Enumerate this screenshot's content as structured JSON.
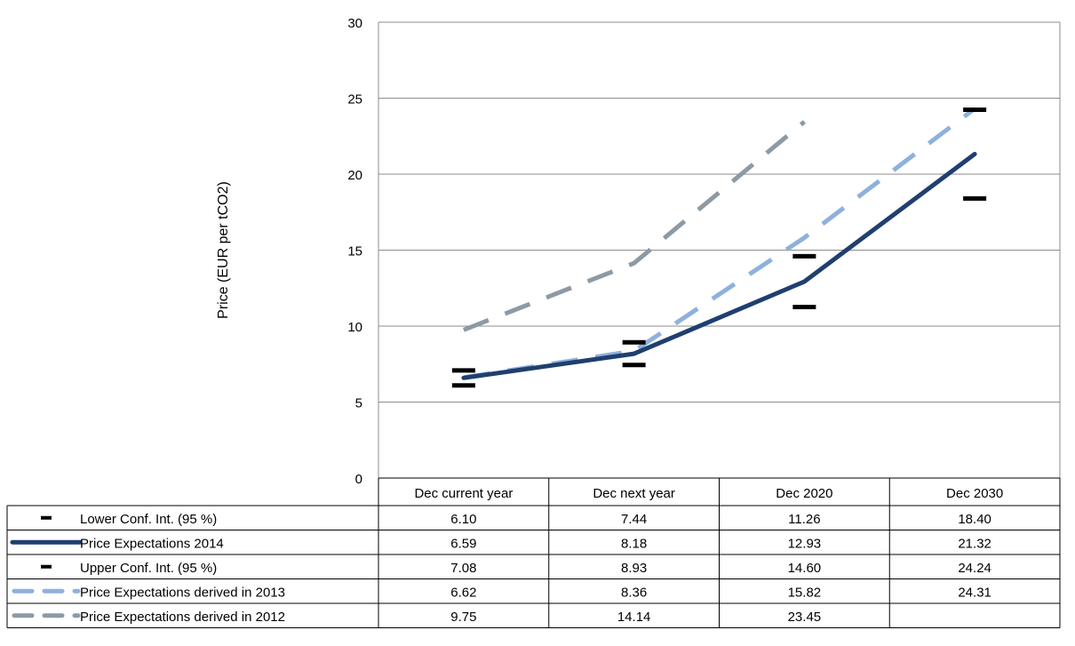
{
  "chart_data": {
    "type": "line",
    "title": "",
    "xlabel": "",
    "ylabel": "Price (EUR per tCO2)",
    "ylim": [
      0,
      30
    ],
    "y_ticks": [
      0,
      5,
      10,
      15,
      20,
      25,
      30
    ],
    "grid": "horizontal",
    "legend": "data-table-below",
    "categories": [
      "Dec current year",
      "Dec next year",
      "Dec 2020",
      "Dec 2030"
    ],
    "series": [
      {
        "name": "Lower Conf. Int. (95 %)",
        "style": "marker-dash",
        "color": "#000000",
        "values": [
          6.1,
          7.44,
          11.26,
          18.4
        ],
        "labels": [
          "6.10",
          "7.44",
          "11.26",
          "18.40"
        ]
      },
      {
        "name": "Price Expectations 2014",
        "style": "solid",
        "color": "#1f3f6f",
        "values": [
          6.59,
          8.18,
          12.93,
          21.32
        ],
        "labels": [
          "6.59",
          "8.18",
          "12.93",
          "21.32"
        ]
      },
      {
        "name": "Upper Conf. Int. (95 %)",
        "style": "marker-dash",
        "color": "#000000",
        "values": [
          7.08,
          8.93,
          14.6,
          24.24
        ],
        "labels": [
          "7.08",
          "8.93",
          "14.60",
          "24.24"
        ]
      },
      {
        "name": "Price Expectations derived in 2013",
        "style": "dashed",
        "color": "#8eb1dd",
        "values": [
          6.62,
          8.36,
          15.82,
          24.31
        ],
        "labels": [
          "6.62",
          "8.36",
          "15.82",
          "24.31"
        ]
      },
      {
        "name": "Price Expectations derived in 2012",
        "style": "dashed",
        "color": "#8d9aa4",
        "values": [
          9.75,
          14.14,
          23.45,
          null
        ],
        "labels": [
          "9.75",
          "14.14",
          "23.45",
          ""
        ]
      }
    ]
  }
}
